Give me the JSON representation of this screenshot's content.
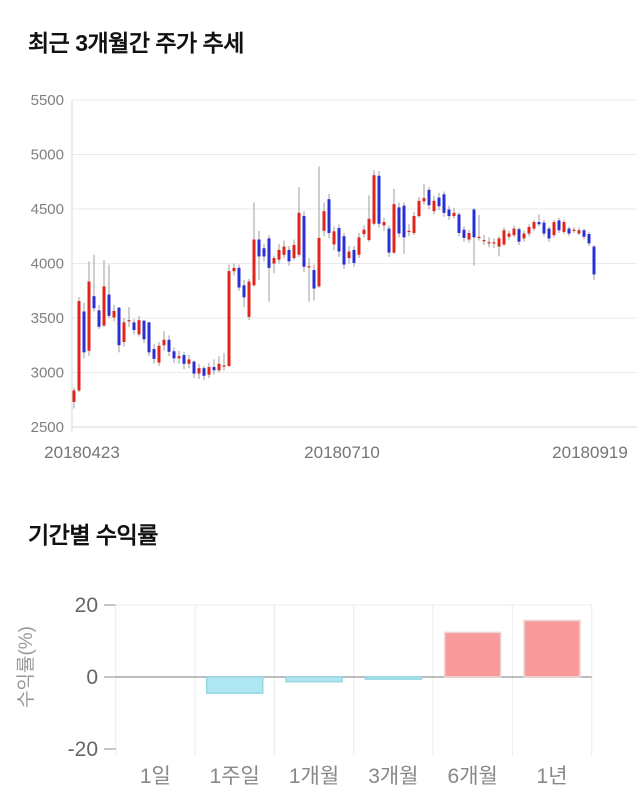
{
  "page": {
    "background": "#ffffff"
  },
  "chart_data": [
    {
      "type": "candlestick",
      "title": "최근 3개월간 주가 추세",
      "ylim": [
        2500,
        5500
      ],
      "y_ticks": [
        5500,
        5000,
        4500,
        4000,
        3500,
        3000,
        2500
      ],
      "x_tick_labels": [
        "20180423",
        "20180710",
        "20180919"
      ],
      "grid": true,
      "legend": "none",
      "colors": {
        "up": "#e1251b",
        "down": "#2a2fd4",
        "wick": "#9c9c9c",
        "grid": "#eaeaea",
        "axis": "#d9d9d9",
        "tick_text": "#7f7f7f",
        "date_text": "#757575"
      },
      "ohlc_format": [
        "open",
        "high",
        "low",
        "close"
      ],
      "ohlc": [
        [
          2730,
          2860,
          2670,
          2835
        ],
        [
          2835,
          3690,
          2820,
          3655
        ],
        [
          3560,
          3640,
          3130,
          3185
        ],
        [
          3200,
          4020,
          3150,
          3835
        ],
        [
          3700,
          4080,
          3560,
          3590
        ],
        [
          3570,
          3620,
          3400,
          3420
        ],
        [
          3430,
          4030,
          3420,
          3790
        ],
        [
          3715,
          3990,
          3500,
          3520
        ],
        [
          3505,
          3620,
          3470,
          3565
        ],
        [
          3595,
          3600,
          3185,
          3250
        ],
        [
          3280,
          3500,
          3240,
          3460
        ],
        [
          3470,
          3600,
          3420,
          3480
        ],
        [
          3460,
          3490,
          3350,
          3390
        ],
        [
          3350,
          3520,
          3330,
          3480
        ],
        [
          3475,
          3480,
          3270,
          3305
        ],
        [
          3460,
          3465,
          3150,
          3185
        ],
        [
          3215,
          3260,
          3080,
          3125
        ],
        [
          3090,
          3280,
          3060,
          3245
        ],
        [
          3250,
          3380,
          3200,
          3300
        ],
        [
          3300,
          3340,
          3150,
          3190
        ],
        [
          3195,
          3230,
          3090,
          3130
        ],
        [
          3130,
          3200,
          3080,
          3150
        ],
        [
          3160,
          3190,
          3030,
          3080
        ],
        [
          3080,
          3160,
          3040,
          3120
        ],
        [
          3100,
          3110,
          2950,
          2990
        ],
        [
          2990,
          3080,
          2940,
          3040
        ],
        [
          3040,
          3060,
          2930,
          2970
        ],
        [
          2980,
          3090,
          2950,
          3050
        ],
        [
          3050,
          3120,
          2980,
          3020
        ],
        [
          3020,
          3150,
          3000,
          3080
        ],
        [
          3060,
          3180,
          3020,
          3065
        ],
        [
          3060,
          3990,
          3050,
          3930
        ],
        [
          3930,
          4000,
          3890,
          3960
        ],
        [
          3960,
          3990,
          3750,
          3780
        ],
        [
          3800,
          3850,
          3600,
          3690
        ],
        [
          3510,
          3860,
          3480,
          3835
        ],
        [
          3800,
          4560,
          3790,
          4220
        ],
        [
          4220,
          4300,
          3850,
          4065
        ],
        [
          4140,
          4180,
          4020,
          4065
        ],
        [
          4230,
          4260,
          3650,
          3960
        ],
        [
          4000,
          4070,
          3910,
          4050
        ],
        [
          4035,
          4180,
          4000,
          4125
        ],
        [
          4080,
          4210,
          4050,
          4155
        ],
        [
          4125,
          4160,
          3980,
          4020
        ],
        [
          4050,
          4220,
          4030,
          4170
        ],
        [
          4080,
          4700,
          4060,
          4465
        ],
        [
          4435,
          4480,
          3920,
          3970
        ],
        [
          3970,
          4050,
          3650,
          3975
        ],
        [
          3940,
          3990,
          3660,
          3770
        ],
        [
          3790,
          4890,
          3780,
          4235
        ],
        [
          4300,
          4560,
          4250,
          4480
        ],
        [
          4590,
          4640,
          4230,
          4280
        ],
        [
          4175,
          4340,
          4120,
          4295
        ],
        [
          4325,
          4360,
          4060,
          4110
        ],
        [
          4250,
          4280,
          3950,
          3990
        ],
        [
          4050,
          4160,
          4000,
          4110
        ],
        [
          4125,
          4160,
          3970,
          4005
        ],
        [
          4080,
          4280,
          4050,
          4240
        ],
        [
          4270,
          4350,
          4240,
          4310
        ],
        [
          4215,
          4625,
          4200,
          4410
        ],
        [
          4365,
          4855,
          4350,
          4810
        ],
        [
          4805,
          4850,
          4330,
          4365
        ],
        [
          4350,
          4420,
          4300,
          4380
        ],
        [
          4320,
          4350,
          4060,
          4100
        ],
        [
          4100,
          4685,
          4090,
          4545
        ],
        [
          4515,
          4560,
          4240,
          4275
        ],
        [
          4530,
          4560,
          4090,
          4240
        ],
        [
          4295,
          4360,
          4250,
          4300
        ],
        [
          4280,
          4470,
          4260,
          4435
        ],
        [
          4435,
          4610,
          4420,
          4575
        ],
        [
          4570,
          4730,
          4540,
          4600
        ],
        [
          4675,
          4700,
          4500,
          4535
        ],
        [
          4480,
          4620,
          4450,
          4575
        ],
        [
          4605,
          4650,
          4490,
          4525
        ],
        [
          4635,
          4660,
          4430,
          4465
        ],
        [
          4495,
          4530,
          4400,
          4435
        ],
        [
          4435,
          4510,
          4410,
          4465
        ],
        [
          4450,
          4470,
          4250,
          4280
        ],
        [
          4310,
          4340,
          4200,
          4235
        ],
        [
          4220,
          4310,
          4190,
          4280
        ],
        [
          4495,
          4510,
          3980,
          4240
        ],
        [
          4240,
          4445,
          4210,
          4245
        ],
        [
          4210,
          4260,
          4170,
          4215
        ],
        [
          4190,
          4240,
          4150,
          4195
        ],
        [
          4185,
          4230,
          4140,
          4195
        ],
        [
          4155,
          4250,
          4065,
          4230
        ],
        [
          4175,
          4330,
          4160,
          4305
        ],
        [
          4245,
          4300,
          4220,
          4275
        ],
        [
          4260,
          4350,
          4240,
          4320
        ],
        [
          4315,
          4330,
          4170,
          4200
        ],
        [
          4230,
          4300,
          4200,
          4275
        ],
        [
          4275,
          4360,
          4250,
          4335
        ],
        [
          4320,
          4400,
          4300,
          4380
        ],
        [
          4380,
          4450,
          4340,
          4360
        ],
        [
          4375,
          4400,
          4250,
          4275
        ],
        [
          4320,
          4340,
          4200,
          4230
        ],
        [
          4260,
          4400,
          4240,
          4380
        ],
        [
          4395,
          4420,
          4280,
          4305
        ],
        [
          4290,
          4400,
          4270,
          4380
        ],
        [
          4320,
          4340,
          4250,
          4275
        ],
        [
          4300,
          4330,
          4280,
          4310
        ],
        [
          4275,
          4330,
          4260,
          4305
        ],
        [
          4305,
          4320,
          4220,
          4245
        ],
        [
          4270,
          4290,
          4160,
          4185
        ],
        [
          4155,
          4170,
          3850,
          3900
        ]
      ]
    },
    {
      "type": "bar",
      "title": "기간별 수익률",
      "ylabel": "수익률(%)",
      "categories": [
        "1일",
        "1주일",
        "1개월",
        "3개월",
        "6개월",
        "1년"
      ],
      "values": [
        0.0,
        -4.5,
        -1.3,
        -0.6,
        12.4,
        15.7
      ],
      "y_ticks": [
        20,
        0,
        -20
      ],
      "ylim": [
        -22,
        22
      ],
      "grid": true,
      "legend": "none",
      "colors": {
        "positive_fill": "#f99b9b",
        "positive_stroke": "#eed6d6",
        "negative_fill": "#aee8f2",
        "negative_stroke": "#96d7e3",
        "zero_line": "#a6a6a6",
        "grid": "#ececec",
        "tick_stub": "#b3b3b3",
        "tick_text": "#666666",
        "category_text": "#888888",
        "ylabel_text": "#999999"
      }
    }
  ]
}
